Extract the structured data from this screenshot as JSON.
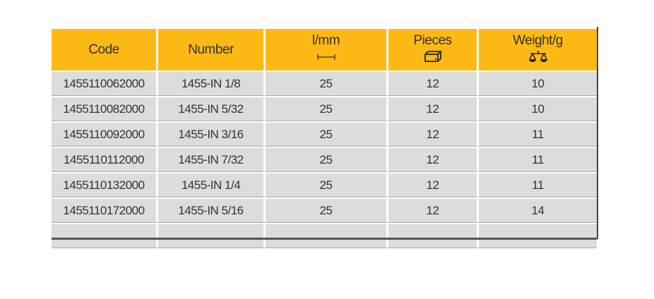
{
  "headers": [
    {
      "label": "Code"
    },
    {
      "label": "Number"
    },
    {
      "label": "l/mm",
      "icon": "length-dimension-icon"
    },
    {
      "label": "Pieces",
      "icon": "box-icon"
    },
    {
      "label": "Weight/g",
      "icon": "scale-icon"
    }
  ],
  "rows": [
    [
      "1455110062000",
      "1455-IN 1/8",
      "25",
      "12",
      "10"
    ],
    [
      "1455110082000",
      "1455-IN 5/32",
      "25",
      "12",
      "10"
    ],
    [
      "1455110092000",
      "1455-IN 3/16",
      "25",
      "12",
      "11"
    ],
    [
      "1455110112000",
      "1455-IN 7/32",
      "25",
      "12",
      "11"
    ],
    [
      "1455110132000",
      "1455-IN 1/4",
      "25",
      "12",
      "11"
    ],
    [
      "1455110172000",
      "1455-IN 5/16",
      "25",
      "12",
      "14"
    ],
    [
      "",
      "",
      "",
      "",
      ""
    ]
  ],
  "colors": {
    "header": "#fdb913",
    "row": "#dcdcdc"
  }
}
